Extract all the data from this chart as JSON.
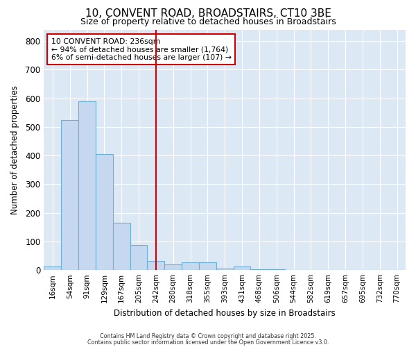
{
  "title": "10, CONVENT ROAD, BROADSTAIRS, CT10 3BE",
  "subtitle": "Size of property relative to detached houses in Broadstairs",
  "xlabel": "Distribution of detached houses by size in Broadstairs",
  "ylabel": "Number of detached properties",
  "bar_color": "#c5d8f0",
  "bar_edge_color": "#6baed6",
  "background_color": "#dde8f5",
  "fig_background_color": "#ffffff",
  "grid_color": "#ffffff",
  "categories": [
    "16sqm",
    "54sqm",
    "91sqm",
    "129sqm",
    "167sqm",
    "205sqm",
    "242sqm",
    "280sqm",
    "318sqm",
    "355sqm",
    "393sqm",
    "431sqm",
    "468sqm",
    "506sqm",
    "544sqm",
    "582sqm",
    "619sqm",
    "657sqm",
    "695sqm",
    "732sqm",
    "770sqm"
  ],
  "values": [
    13,
    525,
    590,
    405,
    165,
    88,
    33,
    20,
    27,
    28,
    5,
    13,
    2,
    2,
    1,
    0,
    0,
    0,
    0,
    0,
    0
  ],
  "ylim": [
    0,
    840
  ],
  "yticks": [
    0,
    100,
    200,
    300,
    400,
    500,
    600,
    700,
    800
  ],
  "vline_index": 6,
  "vline_color": "#cc0000",
  "annotation_title": "10 CONVENT ROAD: 236sqm",
  "annotation_line1": "← 94% of detached houses are smaller (1,764)",
  "annotation_line2": "6% of semi-detached houses are larger (107) →",
  "annotation_box_color": "#cc0000",
  "footer1": "Contains HM Land Registry data © Crown copyright and database right 2025.",
  "footer2": "Contains public sector information licensed under the Open Government Licence v3.0."
}
